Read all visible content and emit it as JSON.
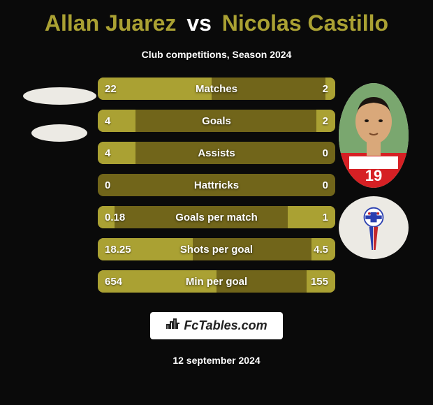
{
  "title": {
    "player1": "Allan Juarez",
    "vs": "vs",
    "player2": "Nicolas Castillo"
  },
  "subtitle": "Club competitions, Season 2024",
  "stats": {
    "rows": [
      {
        "label": "Matches",
        "left": "22",
        "right": "2",
        "left_pct": 48,
        "right_pct": 4
      },
      {
        "label": "Goals",
        "left": "4",
        "right": "2",
        "left_pct": 16,
        "right_pct": 8
      },
      {
        "label": "Assists",
        "left": "4",
        "right": "0",
        "left_pct": 16,
        "right_pct": 0
      },
      {
        "label": "Hattricks",
        "left": "0",
        "right": "0",
        "left_pct": 0,
        "right_pct": 0
      },
      {
        "label": "Goals per match",
        "left": "0.18",
        "right": "1",
        "left_pct": 7,
        "right_pct": 20
      },
      {
        "label": "Shots per goal",
        "left": "18.25",
        "right": "4.5",
        "left_pct": 40,
        "right_pct": 10
      },
      {
        "label": "Min per goal",
        "left": "654",
        "right": "155",
        "left_pct": 50,
        "right_pct": 12
      }
    ],
    "colors": {
      "row_dark": "#71651a",
      "row_light": "#aaa133",
      "text": "#ffffff"
    }
  },
  "branding": {
    "text": "FcTables.com",
    "icon": "📊"
  },
  "date": "12 september 2024",
  "right_player": {
    "jersey_number": "19",
    "jersey_color": "#d62024",
    "skin": "#d9a87a",
    "hair": "#1b1410",
    "bg": "#7aa76f"
  },
  "right_club": {
    "primary": "#2a3fb0",
    "secondary": "#c1272d",
    "bg": "#ffffff"
  },
  "title_color": "#aaa133"
}
